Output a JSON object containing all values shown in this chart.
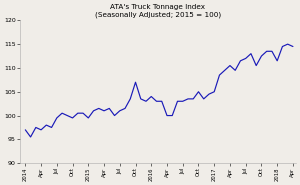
{
  "title_line1": "ATA's Truck Tonnage Index",
  "title_line2": "(Seasonally Adjusted; 2015 = 100)",
  "line_color": "#1a1ab8",
  "background_color": "#f0ede8",
  "plot_bg_color": "#f0ede8",
  "ylim": [
    90,
    120
  ],
  "yticks": [
    90,
    95,
    100,
    105,
    110,
    115,
    120
  ],
  "x_tick_positions": [
    0,
    3,
    6,
    9,
    12,
    15,
    18,
    21,
    24,
    27,
    30,
    33,
    36,
    39,
    42,
    45,
    48,
    51
  ],
  "x_tick_labels": [
    "2014",
    "Apr",
    "Jul",
    "Oct",
    "2015",
    "Apr",
    "Jul",
    "Oct",
    "2016",
    "Apr",
    "Jul",
    "Oct",
    "2017",
    "Apr",
    "Jul",
    "Oct",
    "2018",
    "Apr"
  ],
  "values": [
    97.0,
    95.5,
    97.5,
    97.0,
    98.0,
    97.5,
    99.5,
    100.5,
    100.0,
    99.5,
    100.5,
    100.5,
    99.5,
    101.0,
    101.5,
    101.0,
    101.5,
    100.0,
    101.0,
    101.5,
    103.5,
    107.0,
    103.5,
    103.0,
    104.0,
    103.0,
    103.0,
    100.0,
    100.0,
    103.0,
    103.0,
    103.5,
    103.5,
    105.0,
    103.5,
    104.5,
    105.0,
    108.5,
    109.5,
    110.5,
    109.5,
    111.5,
    112.0,
    113.0,
    110.5,
    112.5,
    113.5,
    113.5,
    111.5,
    114.5,
    115.0,
    114.5
  ]
}
